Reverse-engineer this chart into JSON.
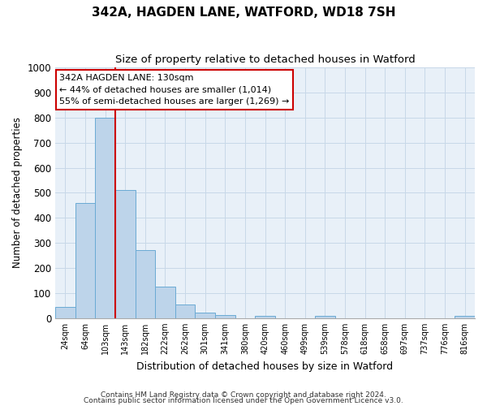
{
  "title": "342A, HAGDEN LANE, WATFORD, WD18 7SH",
  "subtitle": "Size of property relative to detached houses in Watford",
  "xlabel": "Distribution of detached houses by size in Watford",
  "ylabel": "Number of detached properties",
  "bar_labels": [
    "24sqm",
    "64sqm",
    "103sqm",
    "143sqm",
    "182sqm",
    "222sqm",
    "262sqm",
    "301sqm",
    "341sqm",
    "380sqm",
    "420sqm",
    "460sqm",
    "499sqm",
    "539sqm",
    "578sqm",
    "618sqm",
    "658sqm",
    "697sqm",
    "737sqm",
    "776sqm",
    "816sqm"
  ],
  "bar_values": [
    46,
    460,
    800,
    510,
    270,
    125,
    55,
    22,
    12,
    0,
    8,
    0,
    0,
    8,
    0,
    0,
    0,
    0,
    0,
    0,
    8
  ],
  "bar_color": "#bdd4ea",
  "bar_edge_color": "#6aaad4",
  "vline_color": "#cc0000",
  "vline_idx": 2.5,
  "annotation_text": "342A HAGDEN LANE: 130sqm\n← 44% of detached houses are smaller (1,014)\n55% of semi-detached houses are larger (1,269) →",
  "annotation_box_color": "#cc0000",
  "ylim": [
    0,
    1000
  ],
  "yticks": [
    0,
    100,
    200,
    300,
    400,
    500,
    600,
    700,
    800,
    900,
    1000
  ],
  "grid_color": "#c8d8e8",
  "bg_color": "#e8f0f8",
  "footer1": "Contains HM Land Registry data © Crown copyright and database right 2024.",
  "footer2": "Contains public sector information licensed under the Open Government Licence v3.0."
}
